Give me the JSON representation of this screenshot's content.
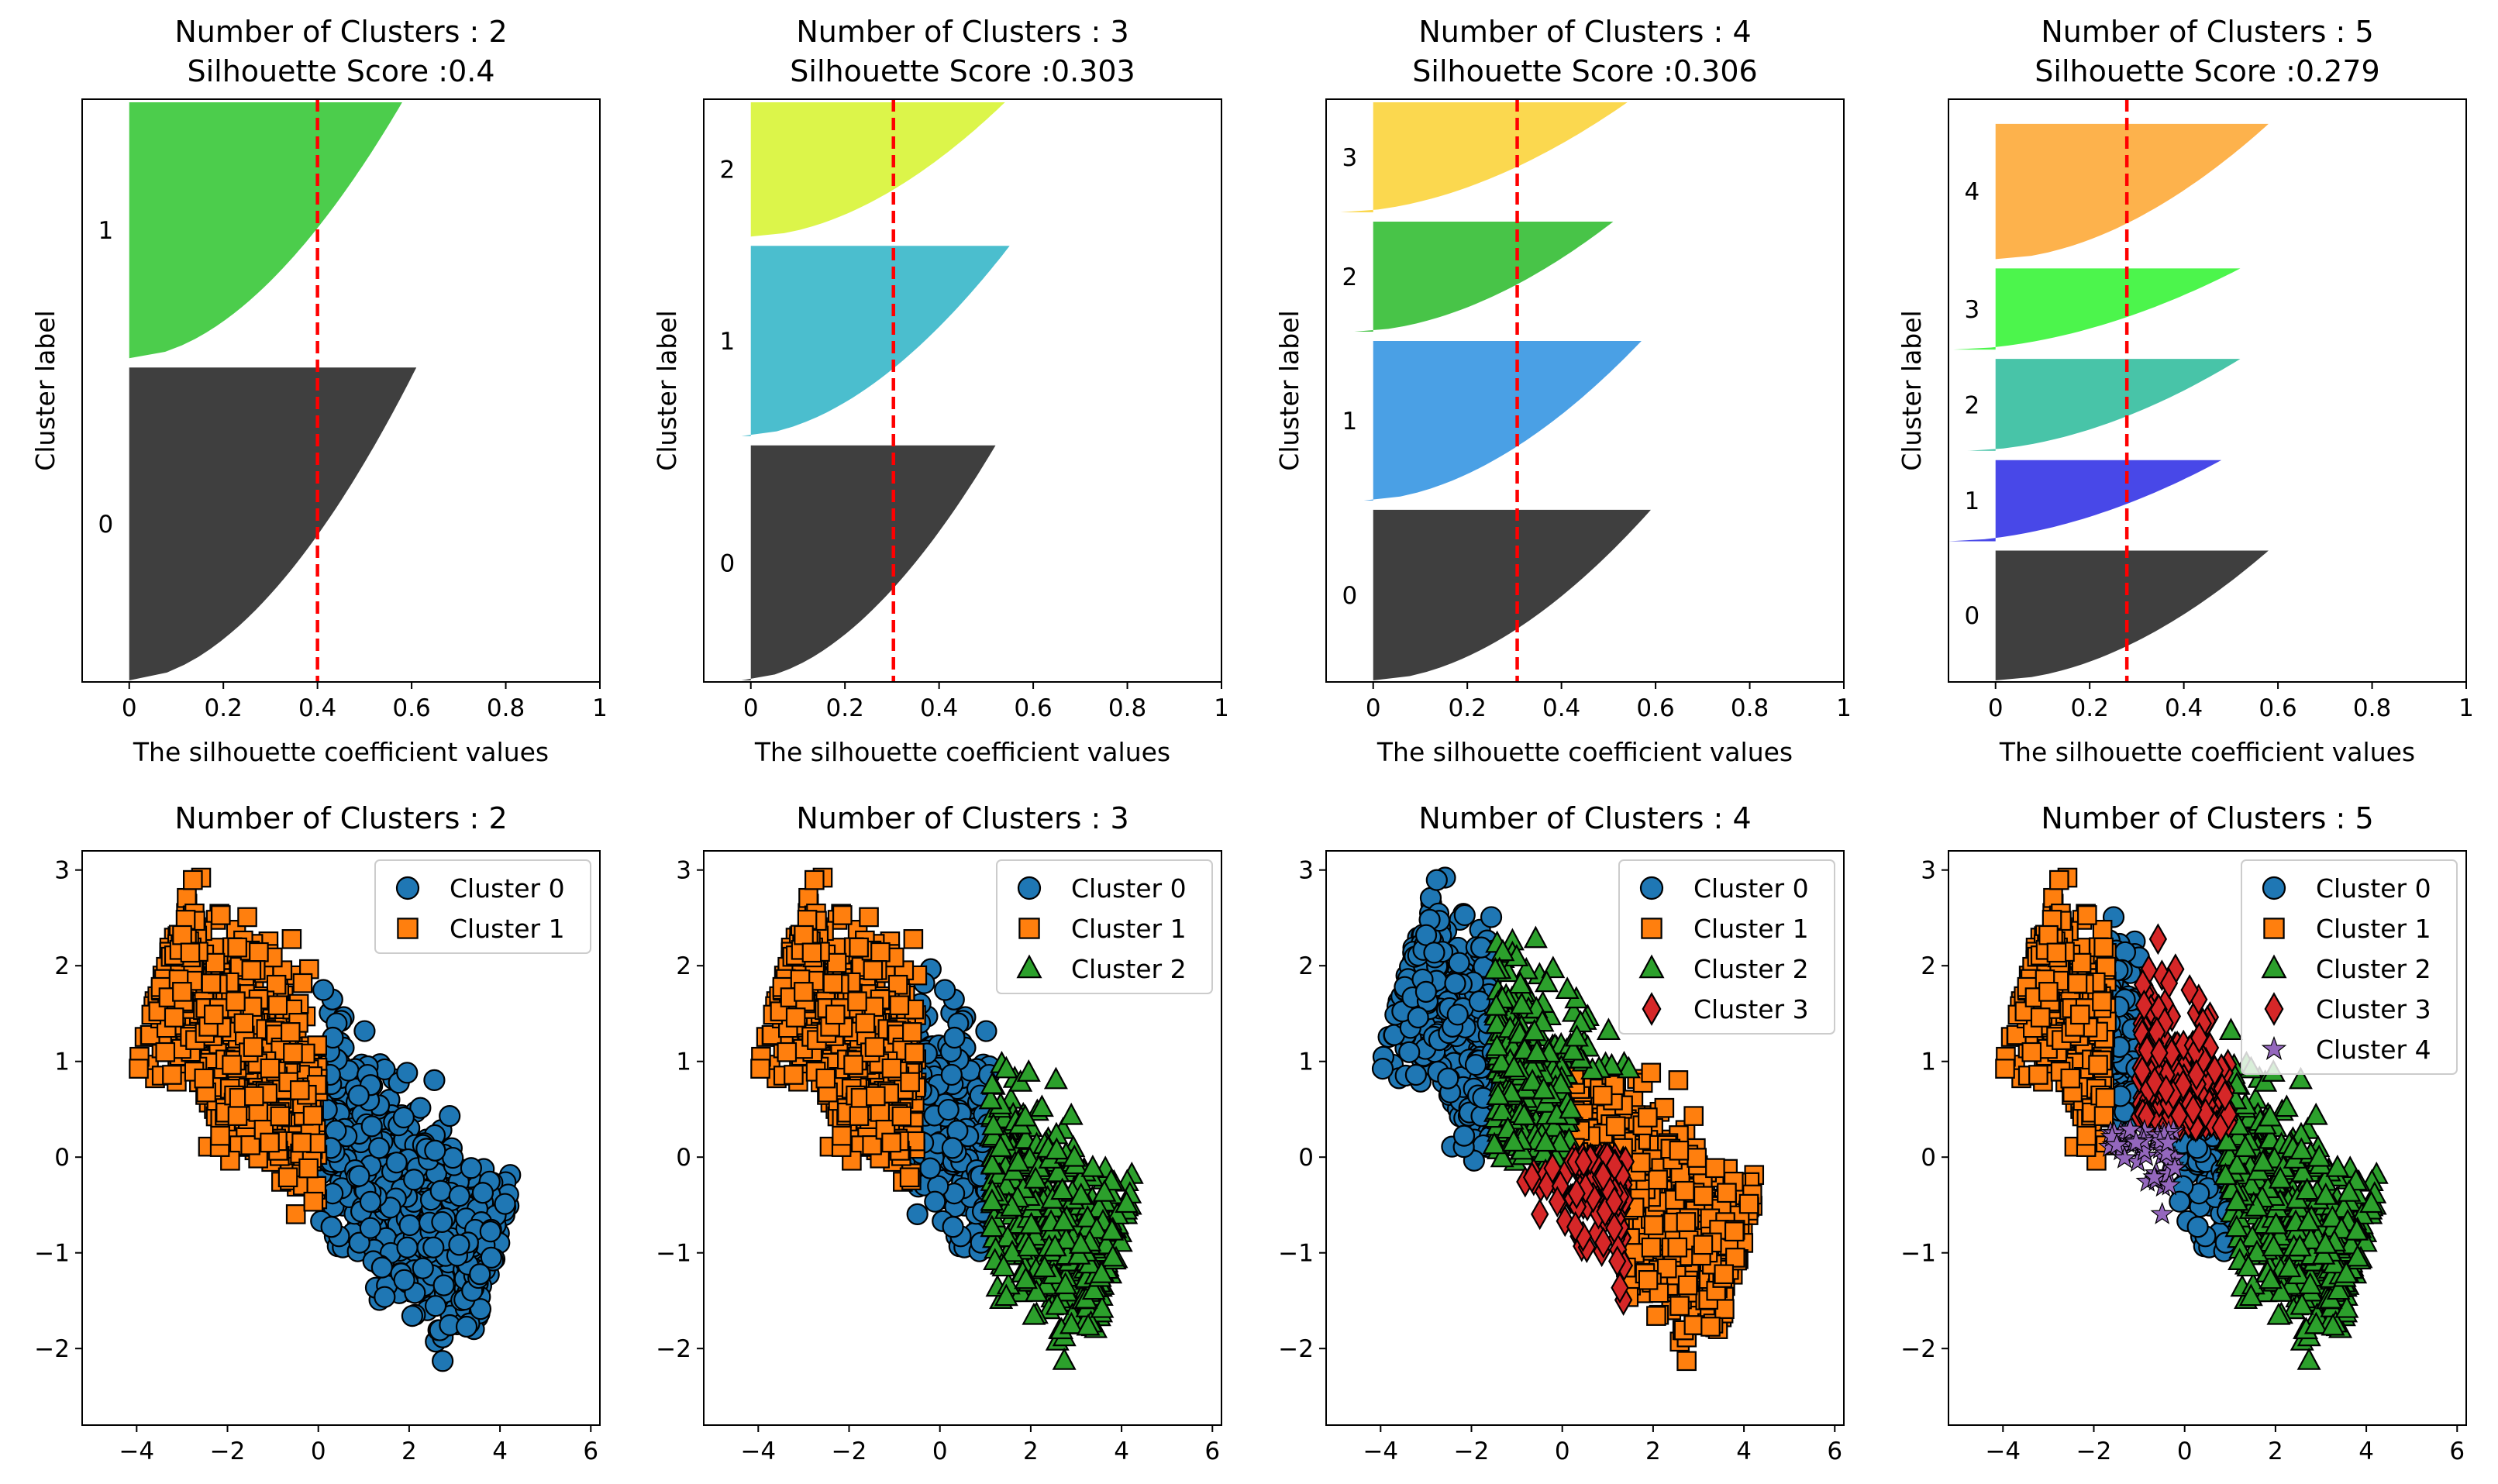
{
  "chart_data": [
    {
      "type": "area",
      "panel": "silhouette",
      "title_line1": "Number of Clusters : 2",
      "title_line2": "Silhouette Score :0.4",
      "xlabel": "The silhouette coefficient values",
      "ylabel": "Cluster label",
      "xlim": [
        -0.1,
        1.0
      ],
      "xticks": [
        0.0,
        0.2,
        0.4,
        0.6,
        0.8,
        1.0
      ],
      "score": 0.4,
      "clusters": [
        {
          "label": "0",
          "color": "#3f3f3f",
          "max": 0.61,
          "min": 0.0,
          "size": 0.55
        },
        {
          "label": "1",
          "color": "#4ccd4c",
          "max": 0.58,
          "min": 0.0,
          "size": 0.45
        }
      ]
    },
    {
      "type": "area",
      "panel": "silhouette",
      "title_line1": "Number of Clusters : 3",
      "title_line2": "Silhouette Score :0.303",
      "xlabel": "The silhouette coefficient values",
      "ylabel": "Cluster label",
      "xlim": [
        -0.1,
        1.0
      ],
      "xticks": [
        0.0,
        0.2,
        0.4,
        0.6,
        0.8,
        1.0
      ],
      "score": 0.303,
      "clusters": [
        {
          "label": "0",
          "color": "#3f3f3f",
          "max": 0.52,
          "min": -0.02,
          "size": 0.42
        },
        {
          "label": "1",
          "color": "#4bbece",
          "max": 0.55,
          "min": -0.02,
          "size": 0.34
        },
        {
          "label": "2",
          "color": "#dcf54a",
          "max": 0.54,
          "min": 0.0,
          "size": 0.24
        }
      ]
    },
    {
      "type": "area",
      "panel": "silhouette",
      "title_line1": "Number of Clusters : 4",
      "title_line2": "Silhouette Score :0.306",
      "xlabel": "The silhouette coefficient values",
      "ylabel": "Cluster label",
      "xlim": [
        -0.1,
        1.0
      ],
      "xticks": [
        0.0,
        0.2,
        0.4,
        0.6,
        0.8,
        1.0
      ],
      "score": 0.306,
      "clusters": [
        {
          "label": "0",
          "color": "#3f3f3f",
          "max": 0.59,
          "min": 0.0,
          "size": 0.31
        },
        {
          "label": "1",
          "color": "#4aa0e5",
          "max": 0.57,
          "min": -0.02,
          "size": 0.29
        },
        {
          "label": "2",
          "color": "#48c448",
          "max": 0.51,
          "min": -0.04,
          "size": 0.2
        },
        {
          "label": "3",
          "color": "#fbd84f",
          "max": 0.54,
          "min": -0.07,
          "size": 0.2
        }
      ]
    },
    {
      "type": "area",
      "panel": "silhouette",
      "title_line1": "Number of Clusters : 5",
      "title_line2": "Silhouette Score :0.279",
      "xlabel": "The silhouette coefficient values",
      "ylabel": "Cluster label",
      "xlim": [
        -0.1,
        1.0
      ],
      "xticks": [
        0.0,
        0.2,
        0.4,
        0.6,
        0.8,
        1.0
      ],
      "score": 0.279,
      "clusters": [
        {
          "label": "0",
          "color": "#3f3f3f",
          "max": 0.58,
          "min": 0.0,
          "size": 0.24
        },
        {
          "label": "1",
          "color": "#4848e8",
          "max": 0.48,
          "min": -0.1,
          "size": 0.15
        },
        {
          "label": "2",
          "color": "#48c4a8",
          "max": 0.52,
          "min": -0.06,
          "size": 0.17
        },
        {
          "label": "3",
          "color": "#4cf54c",
          "max": 0.52,
          "min": -0.09,
          "size": 0.15
        },
        {
          "label": "4",
          "color": "#fdb24c",
          "max": 0.58,
          "min": 0.0,
          "size": 0.25
        }
      ]
    },
    {
      "type": "scatter",
      "panel": "clusters",
      "title": "Number of Clusters : 2",
      "xlim": [
        -5.2,
        6.2
      ],
      "ylim": [
        -2.8,
        3.2
      ],
      "xticks": [
        -4,
        -2,
        0,
        2,
        4,
        6
      ],
      "yticks": [
        -2,
        -1,
        0,
        1,
        2,
        3
      ],
      "legend": [
        "Cluster 0",
        "Cluster 1"
      ],
      "legend_position": "top-right"
    },
    {
      "type": "scatter",
      "panel": "clusters",
      "title": "Number of Clusters : 3",
      "xlim": [
        -5.2,
        6.2
      ],
      "ylim": [
        -2.8,
        3.2
      ],
      "xticks": [
        -4,
        -2,
        0,
        2,
        4,
        6
      ],
      "yticks": [
        -2,
        -1,
        0,
        1,
        2,
        3
      ],
      "legend": [
        "Cluster 0",
        "Cluster 1",
        "Cluster 2"
      ],
      "legend_position": "top-right"
    },
    {
      "type": "scatter",
      "panel": "clusters",
      "title": "Number of Clusters : 4",
      "xlim": [
        -5.2,
        6.2
      ],
      "ylim": [
        -2.8,
        3.2
      ],
      "xticks": [
        -4,
        -2,
        0,
        2,
        4,
        6
      ],
      "yticks": [
        -2,
        -1,
        0,
        1,
        2,
        3
      ],
      "legend": [
        "Cluster 0",
        "Cluster 1",
        "Cluster 2",
        "Cluster 3"
      ],
      "legend_position": "top-right"
    },
    {
      "type": "scatter",
      "panel": "clusters",
      "title": "Number of Clusters : 5",
      "xlim": [
        -5.2,
        6.2
      ],
      "ylim": [
        -2.8,
        3.2
      ],
      "xticks": [
        -4,
        -2,
        0,
        2,
        4,
        6
      ],
      "yticks": [
        -2,
        -1,
        0,
        1,
        2,
        3
      ],
      "legend": [
        "Cluster 0",
        "Cluster 1",
        "Cluster 2",
        "Cluster 3",
        "Cluster 4"
      ],
      "legend_position": "top-right"
    }
  ],
  "marker_styles": [
    {
      "name": "Cluster 0",
      "shape": "circle",
      "color": "#1f77b4"
    },
    {
      "name": "Cluster 1",
      "shape": "square",
      "color": "#ff7f0e"
    },
    {
      "name": "Cluster 2",
      "shape": "triangle",
      "color": "#2ca02c"
    },
    {
      "name": "Cluster 3",
      "shape": "diamond",
      "color": "#d62728"
    },
    {
      "name": "Cluster 4",
      "shape": "star",
      "color": "#9467bd"
    }
  ],
  "score_line_color": "#ff0000"
}
